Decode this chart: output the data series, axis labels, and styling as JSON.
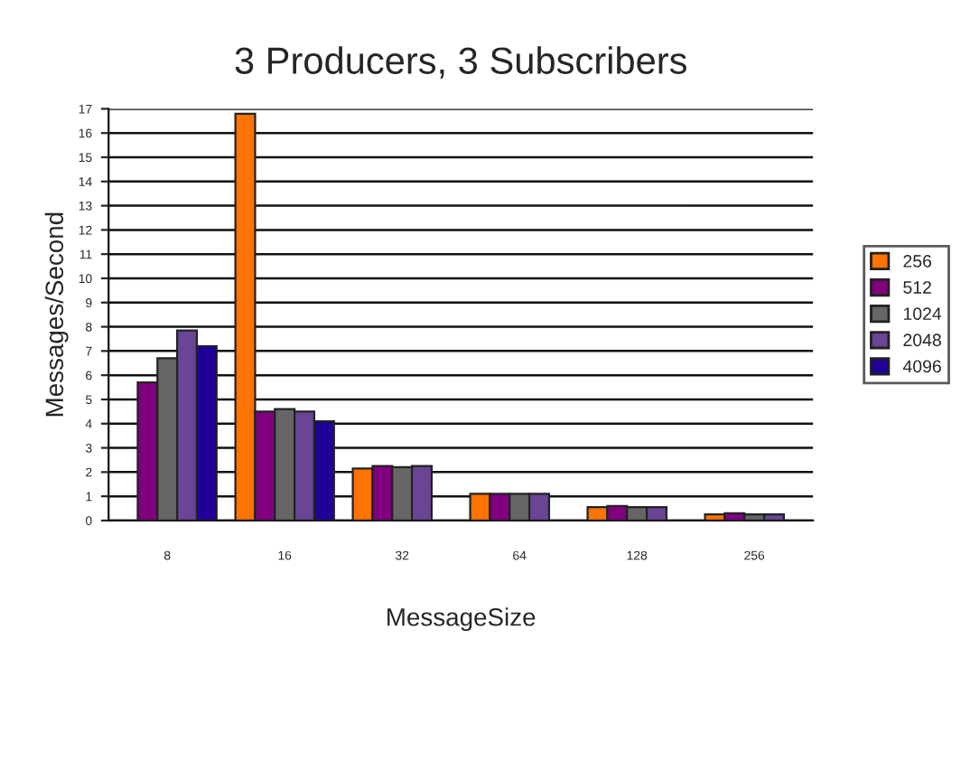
{
  "chart_data": {
    "type": "bar",
    "title": "3 Producers, 3 Subscribers",
    "xlabel": "MessageSize",
    "ylabel": "Messages/Second",
    "categories": [
      "8",
      "16",
      "32",
      "64",
      "128",
      "256"
    ],
    "series": [
      {
        "name": "256",
        "color": "#ff7300",
        "values": [
          null,
          16.8,
          2.15,
          1.1,
          0.55,
          0.25
        ]
      },
      {
        "name": "512",
        "color": "#800080",
        "values": [
          5.7,
          4.5,
          2.25,
          1.1,
          0.6,
          0.3
        ]
      },
      {
        "name": "1024",
        "color": "#666666",
        "values": [
          6.7,
          4.6,
          2.2,
          1.1,
          0.55,
          0.25
        ]
      },
      {
        "name": "2048",
        "color": "#6a4596",
        "values": [
          7.85,
          4.5,
          2.25,
          1.1,
          0.55,
          0.25
        ]
      },
      {
        "name": "4096",
        "color": "#200098",
        "values": [
          7.2,
          4.1,
          null,
          null,
          null,
          null
        ]
      }
    ],
    "ylim": [
      0,
      17
    ],
    "yticks": [
      0,
      1,
      2,
      3,
      4,
      5,
      6,
      7,
      8,
      9,
      10,
      11,
      12,
      13,
      14,
      15,
      16,
      17
    ],
    "grid": "y",
    "legend": "right"
  }
}
